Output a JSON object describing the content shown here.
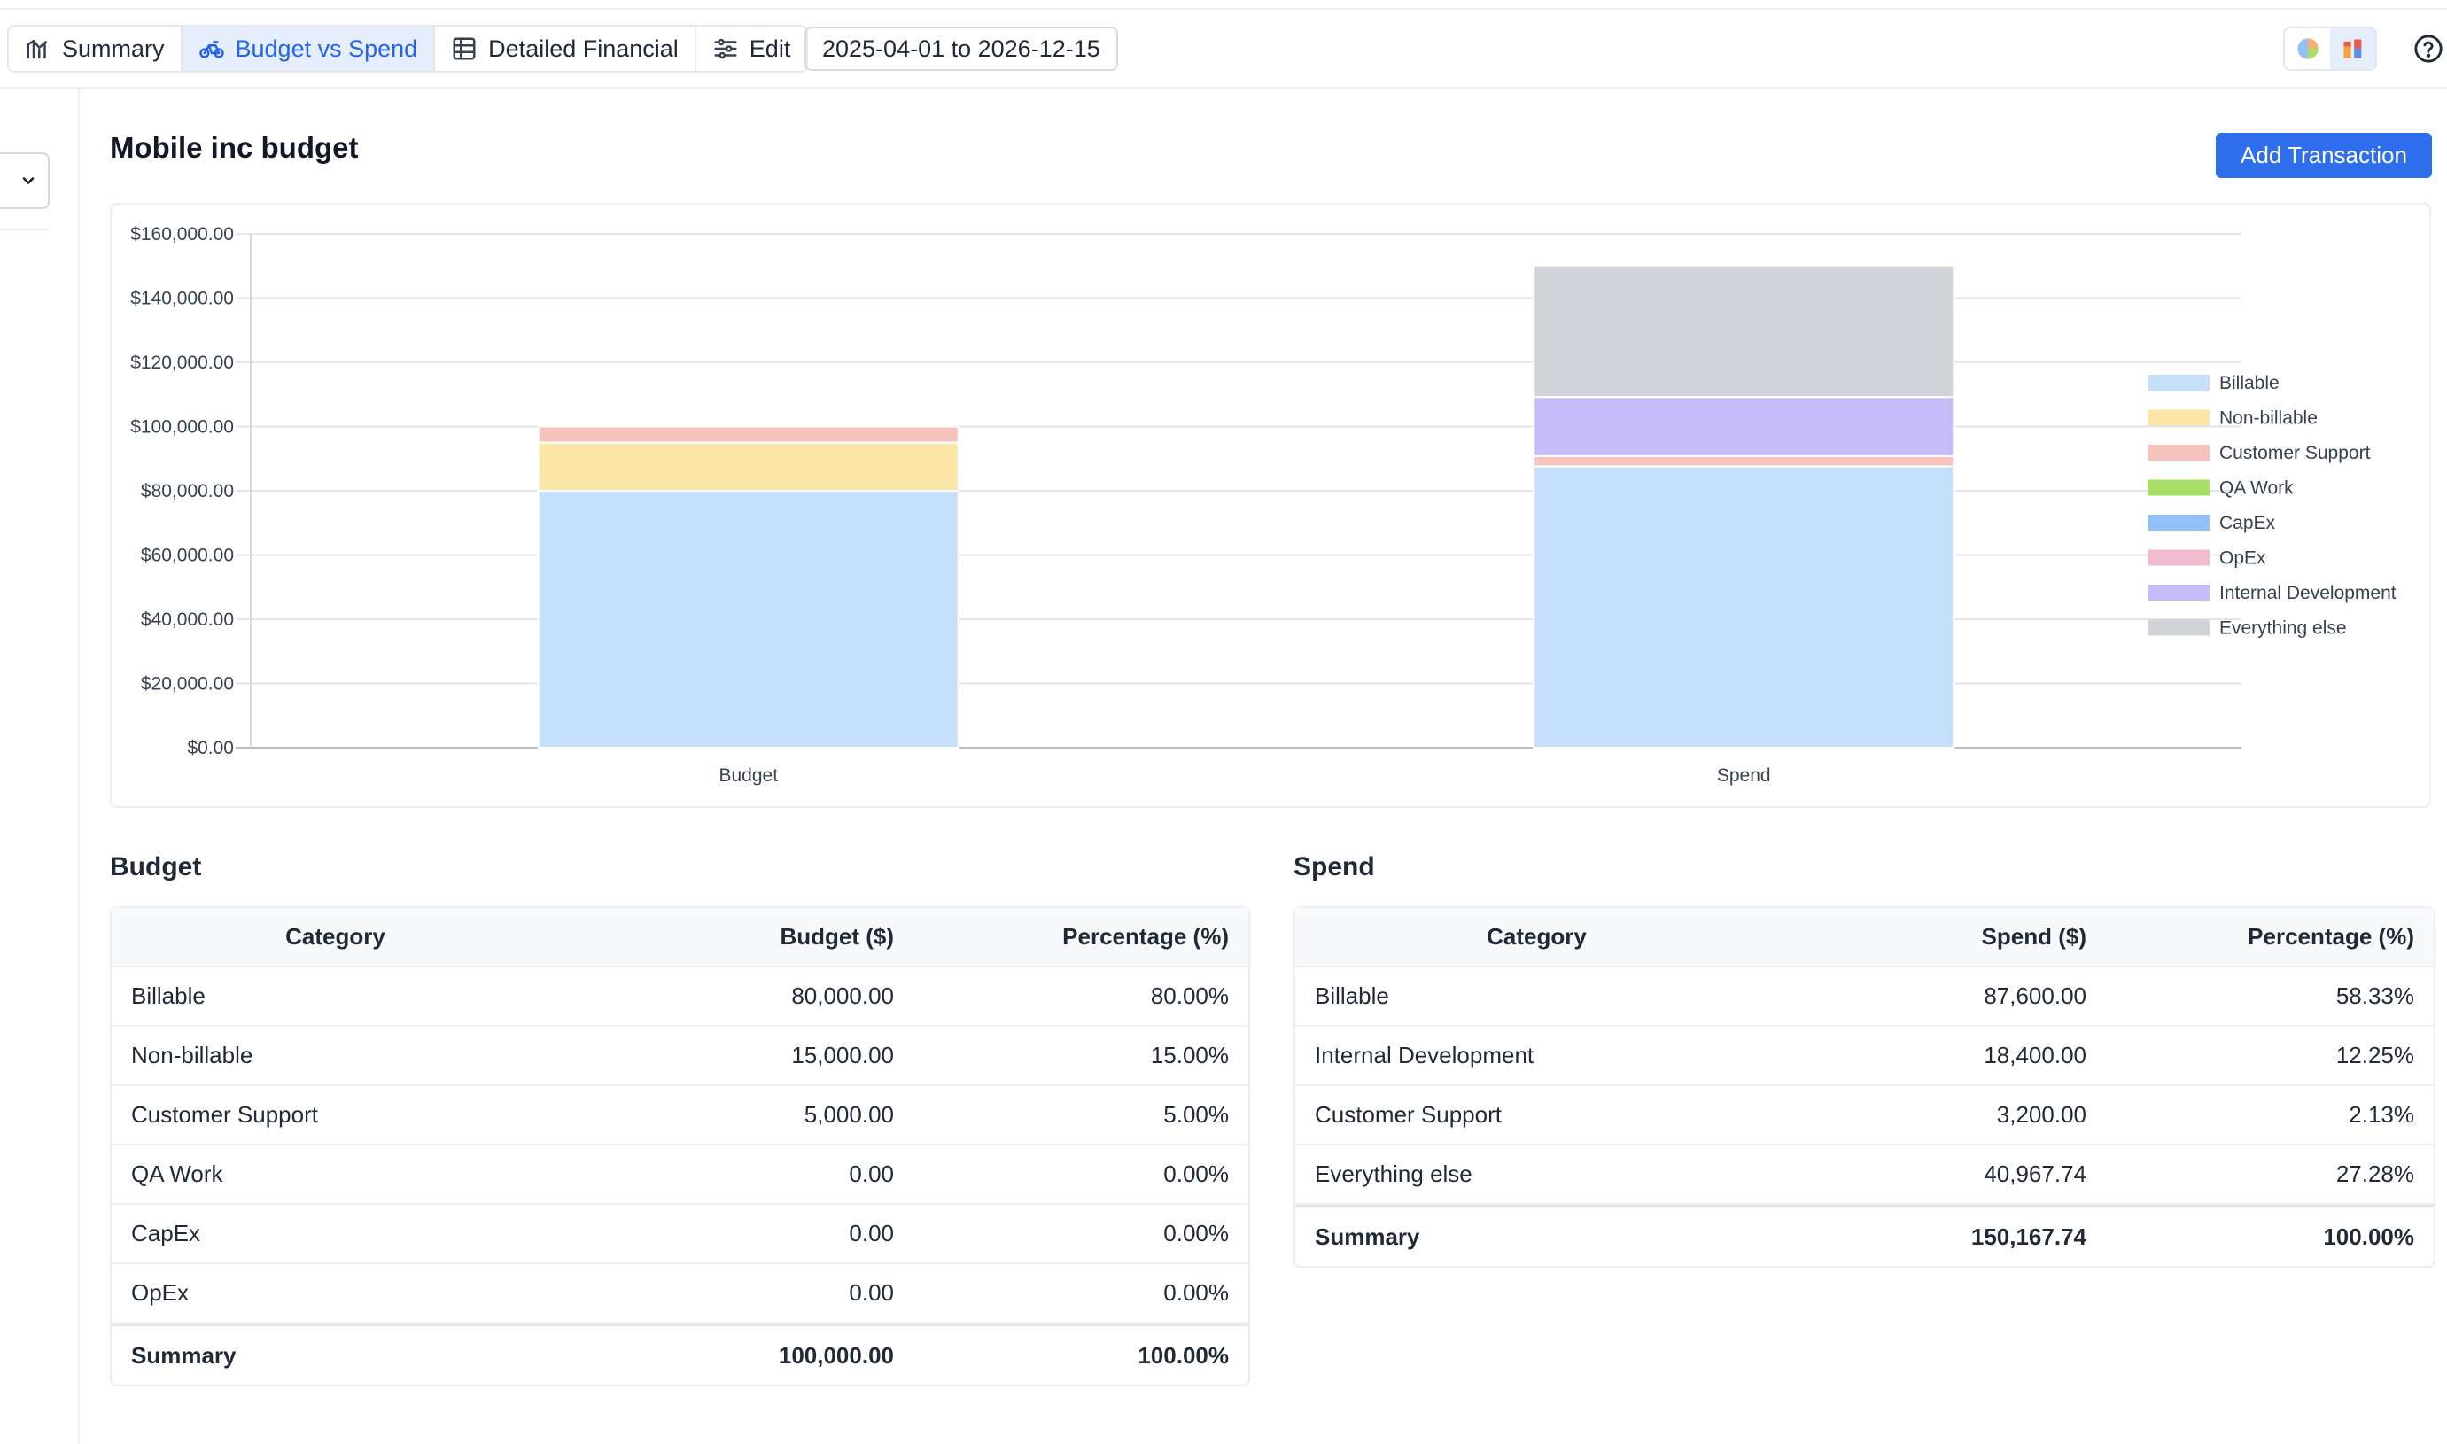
{
  "toolbar": {
    "tabs": [
      {
        "label": "Summary"
      },
      {
        "label": "Budget vs Spend"
      },
      {
        "label": "Detailed Financial"
      },
      {
        "label": "Edit"
      }
    ],
    "date_range": "2025-04-01 to 2026-12-15"
  },
  "page": {
    "title": "Mobile inc budget",
    "add_button": "Add Transaction"
  },
  "colors": {
    "accent": "#2f6fed",
    "Billable": "#c6dffb",
    "Non-billable": "#fae7a8",
    "Customer Support": "#f6c3bd",
    "QA Work": "#a8e067",
    "CapEx": "#93c1f7",
    "OpEx": "#f2bcd0",
    "Internal Development": "#c6bdf8",
    "Everything else": "#d0d3d7"
  },
  "chart_data": {
    "type": "bar",
    "stacked": true,
    "categories": [
      "Budget",
      "Spend"
    ],
    "series": [
      {
        "name": "Billable",
        "values": [
          80000,
          87600
        ]
      },
      {
        "name": "Non-billable",
        "values": [
          15000,
          0
        ]
      },
      {
        "name": "Customer Support",
        "values": [
          5000,
          3200
        ]
      },
      {
        "name": "QA Work",
        "values": [
          0,
          0
        ]
      },
      {
        "name": "CapEx",
        "values": [
          0,
          0
        ]
      },
      {
        "name": "OpEx",
        "values": [
          0,
          0
        ]
      },
      {
        "name": "Internal Development",
        "values": [
          0,
          18400
        ]
      },
      {
        "name": "Everything else",
        "values": [
          0,
          40967.74
        ]
      }
    ],
    "stack_order": [
      "Billable",
      "Non-billable",
      "Customer Support",
      "Internal Development",
      "Everything else"
    ],
    "ylim": [
      0,
      160000
    ],
    "yticks": [
      0,
      20000,
      40000,
      60000,
      80000,
      100000,
      120000,
      140000,
      160000
    ],
    "ytick_labels": [
      "$0.00",
      "$20,000.00",
      "$40,000.00",
      "$60,000.00",
      "$80,000.00",
      "$100,000.00",
      "$120,000.00",
      "$140,000.00",
      "$160,000.00"
    ],
    "grid": true,
    "legend_position": "right"
  },
  "budget_table": {
    "title": "Budget",
    "headers": [
      "Category",
      "Budget ($)",
      "Percentage (%)"
    ],
    "rows": [
      [
        "Billable",
        "80,000.00",
        "80.00%"
      ],
      [
        "Non-billable",
        "15,000.00",
        "15.00%"
      ],
      [
        "Customer Support",
        "5,000.00",
        "5.00%"
      ],
      [
        "QA Work",
        "0.00",
        "0.00%"
      ],
      [
        "CapEx",
        "0.00",
        "0.00%"
      ],
      [
        "OpEx",
        "0.00",
        "0.00%"
      ]
    ],
    "summary": [
      "Summary",
      "100,000.00",
      "100.00%"
    ]
  },
  "spend_table": {
    "title": "Spend",
    "headers": [
      "Category",
      "Spend ($)",
      "Percentage (%)"
    ],
    "rows": [
      [
        "Billable",
        "87,600.00",
        "58.33%"
      ],
      [
        "Internal Development",
        "18,400.00",
        "12.25%"
      ],
      [
        "Customer Support",
        "3,200.00",
        "2.13%"
      ],
      [
        "Everything else",
        "40,967.74",
        "27.28%"
      ]
    ],
    "summary": [
      "Summary",
      "150,167.74",
      "100.00%"
    ]
  }
}
